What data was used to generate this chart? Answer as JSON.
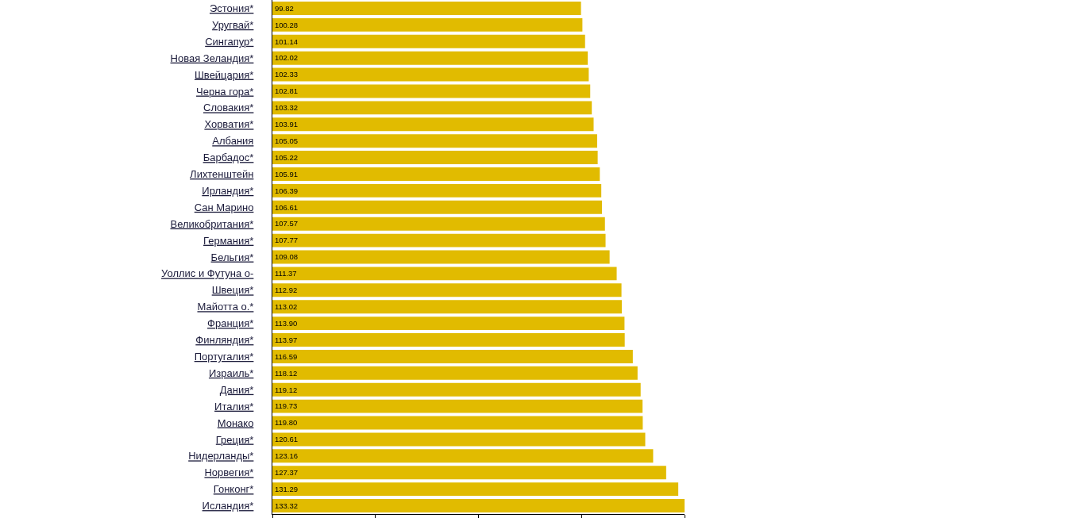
{
  "chart_data": {
    "type": "bar",
    "orientation": "horizontal",
    "categories": [
      "Эстония*",
      "Уругвай*",
      "Сингапур*",
      "Новая Зеландия*",
      "Швейцария*",
      "Черна гора*",
      "Словакия*",
      "Хорватия*",
      "Албания",
      "Барбадос*",
      "Лихтенштейн",
      "Ирландия*",
      "Сан Марино",
      "Великобритания*",
      "Германия*",
      "Бельгия*",
      "Уоллис и Футуна о-",
      "Швеция*",
      "Майотта о.*",
      "Франция*",
      "Финляндия*",
      "Португалия*",
      "Израиль*",
      "Дания*",
      "Италия*",
      "Монако",
      "Греция*",
      "Нидерланды*",
      "Норвегия*",
      "Гонконг*",
      "Исландия*"
    ],
    "values": [
      99.82,
      100.28,
      101.14,
      102.02,
      102.33,
      102.81,
      103.32,
      103.91,
      105.05,
      105.22,
      105.91,
      106.39,
      106.61,
      107.57,
      107.77,
      109.08,
      111.37,
      112.92,
      113.02,
      113.9,
      113.97,
      116.59,
      118.12,
      119.12,
      119.73,
      119.8,
      120.61,
      123.16,
      127.37,
      131.29,
      133.32
    ],
    "value_labels": [
      "99.82",
      "100.28",
      "101.14",
      "102.02",
      "102.33",
      "102.81",
      "103.32",
      "103.91",
      "105.05",
      "105.22",
      "105.91",
      "106.39",
      "106.61",
      "107.57",
      "107.77",
      "109.08",
      "111.37",
      "112.92",
      "113.02",
      "113.90",
      "113.97",
      "116.59",
      "118.12",
      "119.12",
      "119.73",
      "119.80",
      "120.61",
      "123.16",
      "127.37",
      "131.29",
      "133.32"
    ],
    "color": "#e1bb00",
    "xlim": [
      0,
      133.32
    ],
    "xticks": [
      {
        "value": 0,
        "label": null
      },
      {
        "value": 33.33,
        "label": null
      },
      {
        "value": 66.66,
        "label": null
      },
      {
        "value": 99.99,
        "label": null
      },
      {
        "value": 133.32,
        "label": null
      }
    ],
    "tick_labels": "y",
    "grid": false,
    "legend": false
  }
}
